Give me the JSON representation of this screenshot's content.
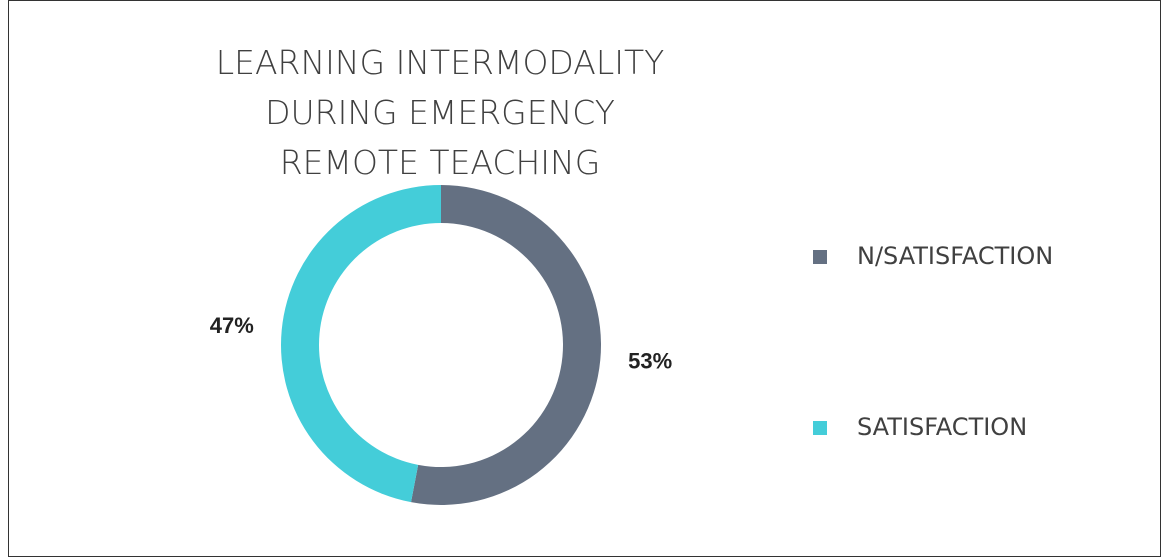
{
  "chart_data": {
    "type": "donut",
    "title": "LEARNING INTERMODALITY DURING EMERGENCY REMOTE TEACHING",
    "categories": [
      "N/SATISFACTION",
      "SATISFACTION"
    ],
    "values": [
      53,
      47
    ],
    "value_labels": [
      "53%",
      "47%"
    ],
    "colors": [
      "#647082",
      "#44cdd9"
    ],
    "legend": "right"
  }
}
